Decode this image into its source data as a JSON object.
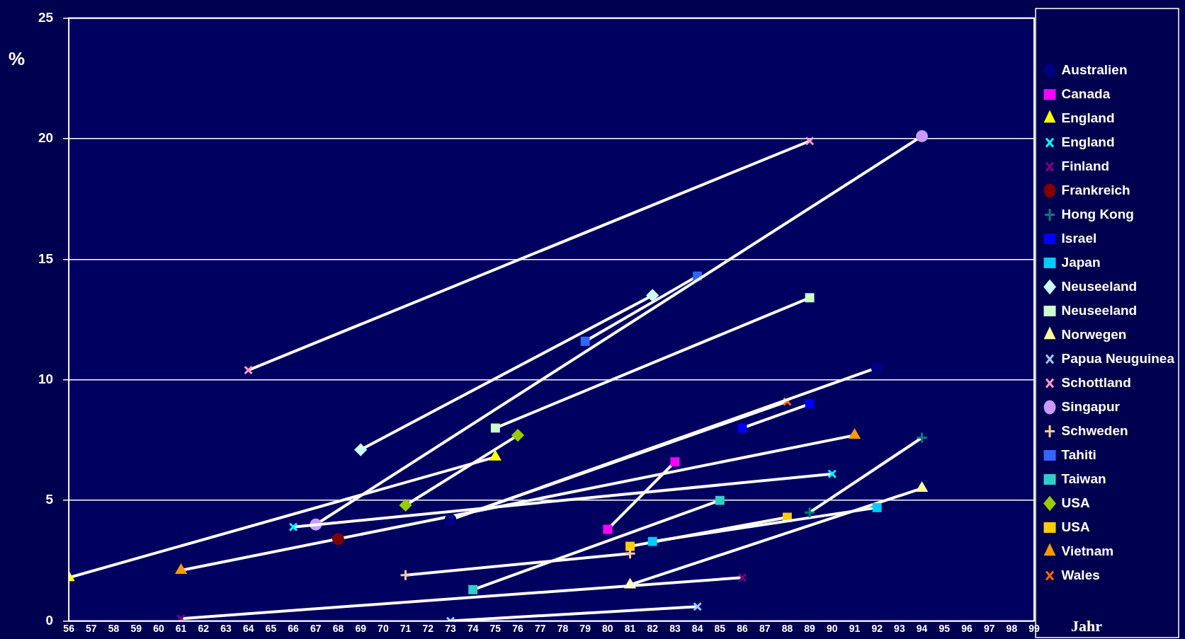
{
  "chart_data": {
    "type": "line",
    "xlabel": "Jahr",
    "ylabel": "%",
    "xlim": [
      56,
      99
    ],
    "xticks": [
      56,
      57,
      58,
      59,
      60,
      61,
      62,
      63,
      64,
      65,
      66,
      67,
      68,
      69,
      70,
      71,
      72,
      73,
      74,
      75,
      76,
      77,
      78,
      79,
      80,
      81,
      82,
      83,
      84,
      85,
      86,
      87,
      88,
      89,
      90,
      91,
      92,
      93,
      94,
      95,
      96,
      97,
      98,
      99
    ],
    "ylim": [
      0,
      25
    ],
    "yticks": [
      0,
      5,
      10,
      15,
      20,
      25
    ],
    "grid": "y",
    "legend": "right",
    "line_style": "solid",
    "series": [
      {
        "name": "Australien",
        "color": "#000080",
        "marker": "circle",
        "x": [
          73,
          92
        ],
        "values": [
          4.2,
          10.5
        ]
      },
      {
        "name": "Canada",
        "color": "#ff00ff",
        "marker": "square",
        "x": [
          80,
          83
        ],
        "values": [
          3.8,
          6.6
        ]
      },
      {
        "name": "England",
        "color": "#ffff00",
        "marker": "triangle",
        "x": [
          56,
          75
        ],
        "values": [
          1.8,
          6.8
        ]
      },
      {
        "name": "England",
        "color": "#00ffff",
        "marker": "cross",
        "x": [
          66,
          90
        ],
        "values": [
          3.9,
          6.1
        ]
      },
      {
        "name": "Finland",
        "color": "#800080",
        "marker": "cross",
        "x": [
          61,
          86
        ],
        "values": [
          0.1,
          1.8
        ]
      },
      {
        "name": "Frankreich",
        "color": "#800000",
        "marker": "circle",
        "x": [
          68
        ],
        "values": [
          3.4
        ]
      },
      {
        "name": "Hong Kong",
        "color": "#008080",
        "marker": "plus",
        "x": [
          89,
          94
        ],
        "values": [
          4.5,
          7.6
        ]
      },
      {
        "name": "Israel",
        "color": "#0000ff",
        "marker": "square",
        "x": [
          86,
          89
        ],
        "values": [
          8.0,
          9.0
        ]
      },
      {
        "name": "Japan",
        "color": "#00ccff",
        "marker": "square",
        "x": [
          82,
          92
        ],
        "values": [
          3.3,
          4.7
        ]
      },
      {
        "name": "Neuseeland",
        "color": "#ccffff",
        "marker": "diamond",
        "x": [
          69,
          82
        ],
        "values": [
          7.1,
          13.5
        ]
      },
      {
        "name": "Neuseeland",
        "color": "#ccffcc",
        "marker": "square",
        "x": [
          75,
          89
        ],
        "values": [
          8.0,
          13.4
        ]
      },
      {
        "name": "Norwegen",
        "color": "#ffff99",
        "marker": "triangle",
        "x": [
          81,
          94
        ],
        "values": [
          1.5,
          5.5
        ]
      },
      {
        "name": "Papua Neuguinea",
        "color": "#99ccff",
        "marker": "cross",
        "x": [
          73,
          84
        ],
        "values": [
          0.0,
          0.6
        ]
      },
      {
        "name": "Schottland",
        "color": "#ff99cc",
        "marker": "cross",
        "x": [
          64,
          89
        ],
        "values": [
          10.4,
          19.9
        ]
      },
      {
        "name": "Singapur",
        "color": "#cc99ff",
        "marker": "circle",
        "x": [
          67,
          94
        ],
        "values": [
          4.0,
          20.1
        ]
      },
      {
        "name": "Schweden",
        "color": "#ffcc99",
        "marker": "plus",
        "x": [
          71,
          81
        ],
        "values": [
          1.9,
          2.8
        ]
      },
      {
        "name": "Tahiti",
        "color": "#3366ff",
        "marker": "square",
        "x": [
          79,
          84
        ],
        "values": [
          11.6,
          14.3
        ]
      },
      {
        "name": "Taiwan",
        "color": "#33cccc",
        "marker": "square",
        "x": [
          74,
          85
        ],
        "values": [
          1.3,
          5.0
        ]
      },
      {
        "name": "USA",
        "color": "#99cc00",
        "marker": "diamond",
        "x": [
          71,
          76
        ],
        "values": [
          4.8,
          7.7
        ]
      },
      {
        "name": "USA",
        "color": "#ffcc00",
        "marker": "square",
        "x": [
          81,
          88
        ],
        "values": [
          3.1,
          4.3
        ]
      },
      {
        "name": "Vietnam",
        "color": "#ff9900",
        "marker": "triangle",
        "x": [
          61,
          91
        ],
        "values": [
          2.1,
          7.7
        ]
      },
      {
        "name": "Wales",
        "color": "#ff6600",
        "marker": "cross",
        "x": [
          73,
          88
        ],
        "values": [
          4.2,
          9.1
        ]
      }
    ]
  }
}
